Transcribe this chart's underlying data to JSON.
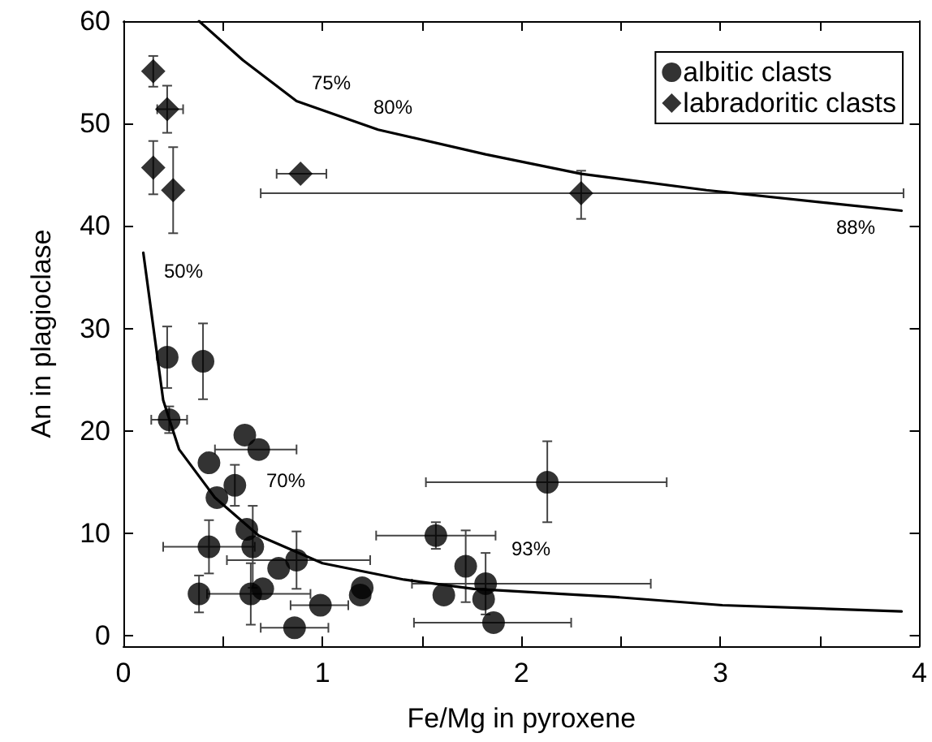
{
  "chart_data": {
    "type": "scatter",
    "xlabel": "Fe/Mg in pyroxene",
    "ylabel": "An in plagioclase",
    "xlim": [
      0,
      4
    ],
    "ylim": [
      -1,
      60
    ],
    "xticks": [
      0,
      {
        "value": 0.5,
        "label": null
      },
      1,
      {
        "value": 1.5,
        "label": null
      },
      2,
      {
        "value": 2.5,
        "label": null
      },
      3,
      {
        "value": 3.5,
        "label": null
      },
      4
    ],
    "yticks": [
      0,
      10,
      20,
      30,
      40,
      50,
      60
    ],
    "grid": false,
    "legend": "top right",
    "series": [
      {
        "name": "albitic clasts",
        "marker": "circle",
        "color": "#000000",
        "x": [
          0.22,
          0.4,
          0.23,
          0.61,
          0.68,
          0.43,
          0.56,
          0.47,
          0.62,
          0.65,
          0.43,
          0.78,
          0.87,
          0.38,
          0.64,
          0.7,
          0.86,
          0.99,
          1.2,
          1.19,
          1.57,
          1.61,
          1.72,
          1.82,
          1.81,
          1.86,
          2.13
        ],
        "values": [
          27.2,
          26.8,
          21.1,
          19.6,
          18.2,
          16.9,
          14.7,
          13.5,
          10.4,
          8.7,
          8.7,
          6.6,
          7.4,
          4.1,
          4.1,
          4.6,
          0.8,
          3.0,
          4.7,
          4.0,
          9.8,
          4.0,
          6.8,
          5.1,
          3.6,
          1.3,
          15.0
        ],
        "errors": [
          3,
          3.7,
          1.3,
          null,
          null,
          null,
          2,
          null,
          null,
          4,
          2.6,
          null,
          2.8,
          1.8,
          3,
          null,
          null,
          null,
          null,
          null,
          1.3,
          null,
          3.5,
          3,
          null,
          null,
          [
            11.1,
            19.0
          ]
        ],
        "xerrors": [
          null,
          null,
          0.09,
          null,
          [
            0.46,
            0.87
          ],
          null,
          null,
          null,
          null,
          null,
          0.23,
          null,
          [
            0.52,
            1.24
          ],
          null,
          [
            0.42,
            0.94
          ],
          null,
          [
            0.69,
            1.03
          ],
          [
            0.84,
            1.13
          ],
          null,
          null,
          [
            1.27,
            1.87
          ],
          null,
          null,
          [
            1.45,
            2.65
          ],
          null,
          [
            1.46,
            2.25
          ],
          [
            1.52,
            2.73
          ]
        ]
      },
      {
        "name": "labradoritic clasts",
        "marker": "diamond",
        "color": "#000000",
        "x": [
          0.15,
          0.22,
          0.15,
          0.25,
          0.89,
          2.3
        ],
        "values": [
          55.1,
          51.4,
          45.7,
          43.5,
          45.1,
          43.2
        ],
        "errors": [
          1.5,
          2.3,
          2.6,
          4.2,
          null,
          [
            40.7,
            45.4
          ]
        ],
        "xerrors": [
          null,
          [
            0.17,
            0.3
          ],
          null,
          null,
          [
            0.77,
            1.02
          ],
          [
            0.69,
            3.92
          ]
        ]
      },
      {
        "type": "line",
        "marker": "none",
        "line_style": "solid",
        "color": "#000000",
        "x": [
          0.1,
          0.2,
          0.28,
          0.46,
          0.68,
          1.0,
          1.41,
          1.76,
          2.47,
          3.01,
          3.91
        ],
        "values": [
          37.4,
          23,
          18.2,
          13.5,
          9.8,
          7.1,
          5.5,
          4.6,
          3.8,
          3.0,
          2.4
        ]
      },
      {
        "type": "line",
        "marker": "none",
        "line_style": "solid",
        "color": "#000000",
        "x": [
          0.38,
          0.6,
          0.87,
          1.28,
          1.82,
          2.3,
          2.93,
          3.91
        ],
        "values": [
          60,
          56.2,
          52.2,
          49.4,
          47.0,
          45.1,
          43.5,
          41.5
        ]
      }
    ],
    "annotations": [
      "50%",
      "75%",
      "80%",
      "88%",
      "70%",
      "93%"
    ]
  }
}
